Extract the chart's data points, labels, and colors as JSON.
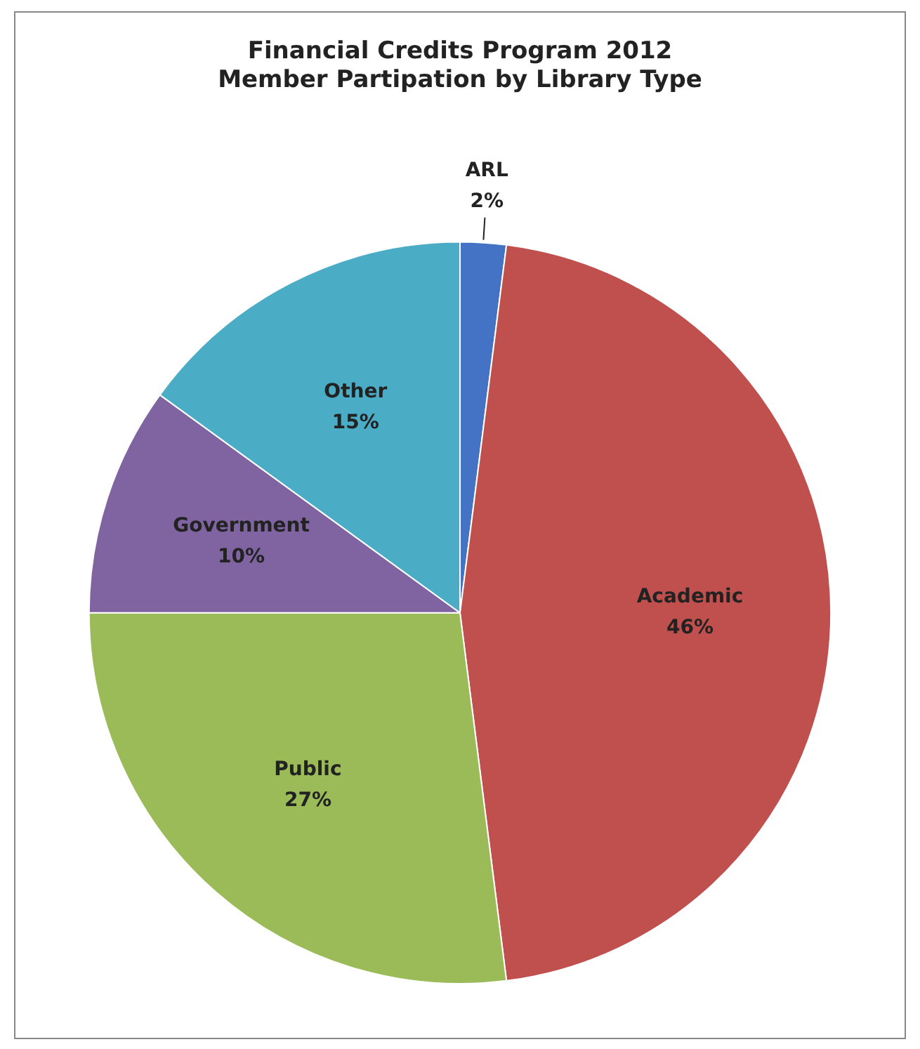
{
  "chart_data": {
    "type": "pie",
    "title": "Financial Credits Program 2012\nMember Partipation by Library Type",
    "categories": [
      "ARL",
      "Academic",
      "Public",
      "Government",
      "Other"
    ],
    "values": [
      2,
      46,
      27,
      10,
      15
    ],
    "value_labels": [
      "2%",
      "46%",
      "27%",
      "10%",
      "15%"
    ],
    "colors": [
      "#4472c4",
      "#c0504d",
      "#9bbb59",
      "#8064a2",
      "#4bacc6"
    ],
    "legend": false
  }
}
